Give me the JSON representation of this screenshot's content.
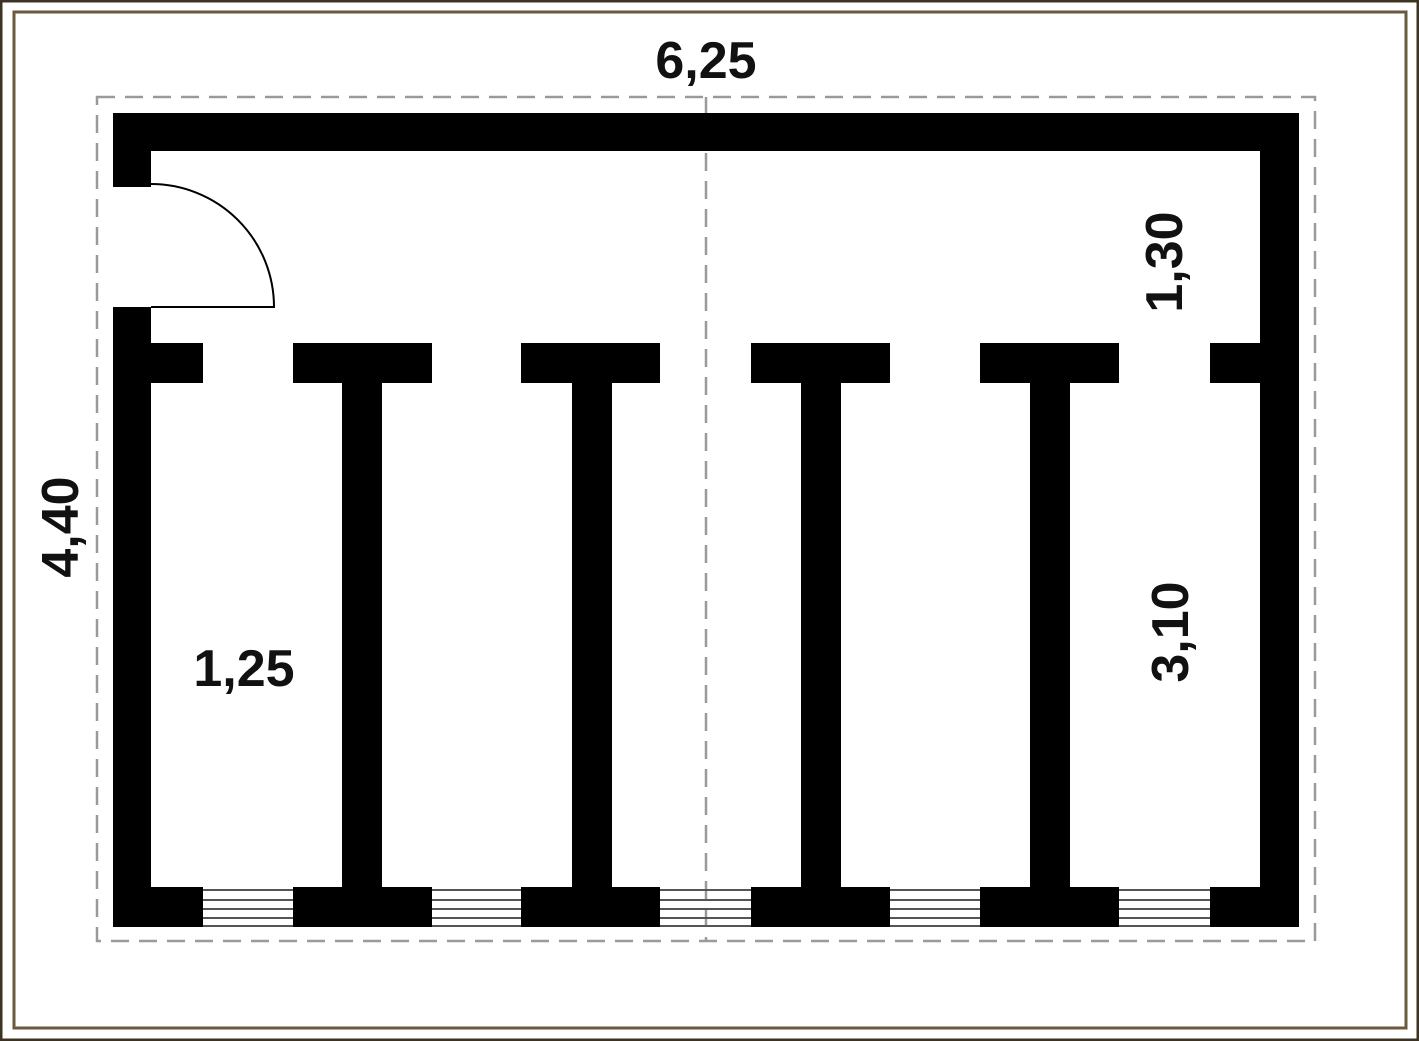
{
  "plan": {
    "dimensions": {
      "total_width": "6,25",
      "total_depth": "4,40",
      "corridor_depth": "1,30",
      "stall_depth": "3,10",
      "stall_width": "1,25"
    },
    "stall_count": 5,
    "colors": {
      "wall": "#000000",
      "outer_frame": "#3d3322",
      "inner_frame": "#6b5a3e",
      "dashed_outline": "#9a9a9a",
      "background": "#ffffff"
    }
  }
}
